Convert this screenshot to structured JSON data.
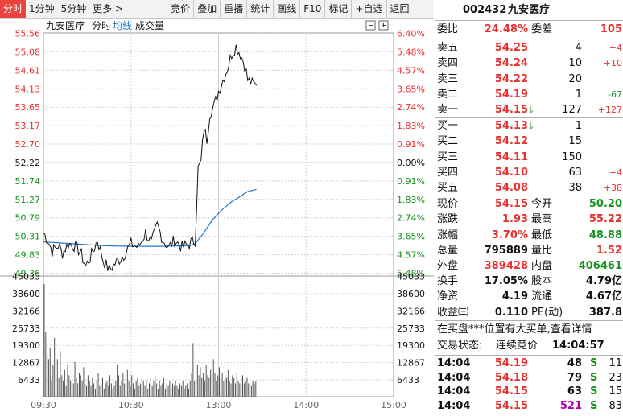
{
  "toolbar": {
    "tabs": [
      "分时",
      "1分钟",
      "5分钟",
      "更多 >"
    ],
    "buttons": [
      "竞价",
      "叠加",
      "重播",
      "统计",
      "画线",
      "F10",
      "标记",
      "+自选",
      "返回"
    ]
  },
  "chart_header": {
    "name": "九安医疗",
    "mode": "分时",
    "avg_line": "均线",
    "volume": "成交量"
  },
  "colors": {
    "up": "#e8302e",
    "down": "#18931f",
    "flat": "#111111",
    "avg_line": "#1e78c8",
    "price_line": "#111111"
  },
  "chart_data": {
    "type": "line",
    "prev_close": 52.22,
    "price_ticks": [
      "55.56",
      "55.08",
      "54.61",
      "54.13",
      "53.65",
      "53.17",
      "52.70",
      "52.22",
      "51.74",
      "51.27",
      "50.79",
      "50.31",
      "49.83",
      "49.36"
    ],
    "pct_ticks": [
      "6.40%",
      "5.48%",
      "4.57%",
      "3.65%",
      "2.74%",
      "1.83%",
      "0.91%",
      "0.00%",
      "0.91%",
      "1.83%",
      "2.74%",
      "3.65%",
      "4.57%",
      "5.48%"
    ],
    "ylim": [
      49.12,
      55.56
    ],
    "vol_ticks": [
      "45033",
      "38600",
      "32166",
      "25733",
      "19300",
      "12867",
      "6433"
    ],
    "vol_max": 45033,
    "time_labels": [
      "09:30",
      "10:30",
      "13:00",
      "14:00",
      "15:00"
    ],
    "total_minutes": 240,
    "price_points": [
      [
        0,
        50.2
      ],
      [
        3,
        50.0
      ],
      [
        6,
        49.7
      ],
      [
        10,
        49.85
      ],
      [
        13,
        49.65
      ],
      [
        17,
        49.9
      ],
      [
        21,
        49.85
      ],
      [
        25,
        49.7
      ],
      [
        29,
        49.3
      ],
      [
        33,
        49.6
      ],
      [
        37,
        50.0
      ],
      [
        41,
        49.45
      ],
      [
        45,
        49.2
      ],
      [
        50,
        49.4
      ],
      [
        55,
        49.6
      ],
      [
        60,
        49.9
      ],
      [
        65,
        49.8
      ],
      [
        70,
        50.2
      ],
      [
        74,
        49.9
      ],
      [
        78,
        50.4
      ],
      [
        82,
        50.0
      ],
      [
        86,
        49.8
      ],
      [
        90,
        50.0
      ],
      [
        95,
        49.8
      ],
      [
        100,
        49.9
      ],
      [
        104,
        50.0
      ],
      [
        106,
        51.9
      ],
      [
        108,
        52.1
      ],
      [
        110,
        53.0
      ],
      [
        112,
        52.7
      ],
      [
        114,
        53.4
      ],
      [
        117,
        53.6
      ],
      [
        120,
        54.0
      ],
      [
        123,
        54.3
      ],
      [
        126,
        54.6
      ],
      [
        129,
        55.0
      ],
      [
        132,
        55.2
      ],
      [
        135,
        55.0
      ],
      [
        138,
        54.7
      ],
      [
        140,
        54.3
      ],
      [
        143,
        54.2
      ],
      [
        146,
        54.15
      ]
    ],
    "avg_points": [
      [
        0,
        49.95
      ],
      [
        20,
        49.9
      ],
      [
        40,
        49.85
      ],
      [
        60,
        49.83
      ],
      [
        80,
        49.83
      ],
      [
        100,
        49.85
      ],
      [
        104,
        49.9
      ],
      [
        110,
        50.2
      ],
      [
        116,
        50.55
      ],
      [
        122,
        50.8
      ],
      [
        128,
        51.0
      ],
      [
        134,
        51.15
      ],
      [
        140,
        51.3
      ],
      [
        146,
        51.36
      ]
    ],
    "volumes": [
      42000,
      24000,
      16000,
      14000,
      18000,
      6000,
      12000,
      22000,
      8000,
      14000,
      7000,
      17000,
      8000,
      6000,
      10000,
      4000,
      12000,
      8000,
      6000,
      9000,
      5000,
      13000,
      7000,
      5000,
      9000,
      8000,
      6000,
      11000,
      5000,
      4000,
      8000,
      6000,
      4000,
      7000,
      5000,
      3000,
      6000,
      9000,
      4000,
      5000,
      7000,
      3000,
      5000,
      6000,
      4000,
      8000,
      5000,
      3000,
      4000,
      6000,
      12000,
      8000,
      4000,
      6000,
      9000,
      5000,
      7000,
      10000,
      6000,
      4000,
      8000,
      5000,
      3000,
      6000,
      7000,
      4000,
      5000,
      9000,
      6000,
      4000,
      6000,
      3000,
      5000,
      7000,
      4000,
      6000,
      8000,
      5000,
      3000,
      6000,
      4000,
      5000,
      7000,
      3000,
      5000,
      4000,
      6000,
      3000,
      5000,
      4000,
      6000,
      4000,
      3000,
      5000,
      4000,
      6000,
      3000,
      4000,
      5000,
      3000,
      6000,
      9000,
      20000,
      6000,
      9000,
      12000,
      8000,
      11000,
      7000,
      9000,
      6000,
      12000,
      8000,
      7000,
      10000,
      8000,
      14000,
      9000,
      6000,
      8000,
      11000,
      7000,
      9000,
      6000,
      8000,
      7000,
      10000,
      6000,
      5000,
      8000,
      7000,
      5000,
      9000,
      6000,
      5000,
      7000,
      8000,
      5000,
      6000,
      7000,
      5000,
      6000,
      4000,
      6000,
      5000,
      6000
    ]
  },
  "quote": {
    "code": "002432",
    "name": "九安医疗",
    "weibi_label": "委比",
    "weibi": "24.48%",
    "weicha_label": "委差",
    "weicha": "105",
    "asks": [
      {
        "label": "卖五",
        "price": "54.25",
        "vol": "4",
        "chg": "+4",
        "chg_color": "red"
      },
      {
        "label": "卖四",
        "price": "54.24",
        "vol": "10",
        "chg": "+10",
        "chg_color": "red"
      },
      {
        "label": "卖三",
        "price": "54.22",
        "vol": "20",
        "chg": "",
        "chg_color": "red"
      },
      {
        "label": "卖二",
        "price": "54.19",
        "vol": "1",
        "chg": "-67",
        "chg_color": "green"
      },
      {
        "label": "卖一",
        "price": "54.15",
        "vol": "127",
        "chg": "+127",
        "chg_color": "red",
        "arrow": "🡓"
      }
    ],
    "bids": [
      {
        "label": "买一",
        "price": "54.13",
        "vol": "1",
        "chg": "",
        "chg_color": "red",
        "arrow": "🡓"
      },
      {
        "label": "买二",
        "price": "54.12",
        "vol": "15",
        "chg": "",
        "chg_color": "red"
      },
      {
        "label": "买三",
        "price": "54.11",
        "vol": "150",
        "chg": "",
        "chg_color": "red"
      },
      {
        "label": "买四",
        "price": "54.10",
        "vol": "63",
        "chg": "+4",
        "chg_color": "red"
      },
      {
        "label": "买五",
        "price": "54.08",
        "vol": "38",
        "chg": "+38",
        "chg_color": "red"
      }
    ],
    "stats": [
      {
        "l1": "现价",
        "v1": "54.15",
        "c1": "red",
        "l2": "今开",
        "v2": "50.20",
        "c2": "green"
      },
      {
        "l1": "涨跌",
        "v1": "1.93",
        "c1": "red",
        "l2": "最高",
        "v2": "55.22",
        "c2": "red"
      },
      {
        "l1": "涨幅",
        "v1": "3.70%",
        "c1": "red",
        "l2": "最低",
        "v2": "48.88",
        "c2": "green"
      },
      {
        "l1": "总量",
        "v1": "795889",
        "c1": "dark",
        "l2": "量比",
        "v2": "1.52",
        "c2": "red"
      },
      {
        "l1": "外盘",
        "v1": "389428",
        "c1": "red",
        "l2": "内盘",
        "v2": "406461",
        "c2": "green"
      }
    ],
    "fin": [
      {
        "l1": "换手",
        "v1": "17.05%",
        "l2": "股本",
        "v2": "4.79亿"
      },
      {
        "l1": "净资",
        "v1": "4.19",
        "l2": "流通",
        "v2": "4.67亿"
      },
      {
        "l1": "收益㈢",
        "v1": "0.110",
        "l2": "PE(动)",
        "v2": "387.8"
      }
    ],
    "notice": "在买盘***位置有大买单,查看详情",
    "status_label": "交易状态:",
    "status": "连续竞价",
    "status_time": "14:04:57",
    "ticks": [
      {
        "time": "14:04",
        "price": "54.19",
        "vol": "48",
        "side": "S",
        "n": "11",
        "vol_color": "dark"
      },
      {
        "time": "14:04",
        "price": "54.18",
        "vol": "79",
        "side": "S",
        "n": "23",
        "vol_color": "dark"
      },
      {
        "time": "14:04",
        "price": "54.15",
        "vol": "63",
        "side": "S",
        "n": "15",
        "vol_color": "dark"
      },
      {
        "time": "14:04",
        "price": "54.15",
        "vol": "521",
        "side": "S",
        "n": "83",
        "vol_color": "purple"
      }
    ]
  }
}
